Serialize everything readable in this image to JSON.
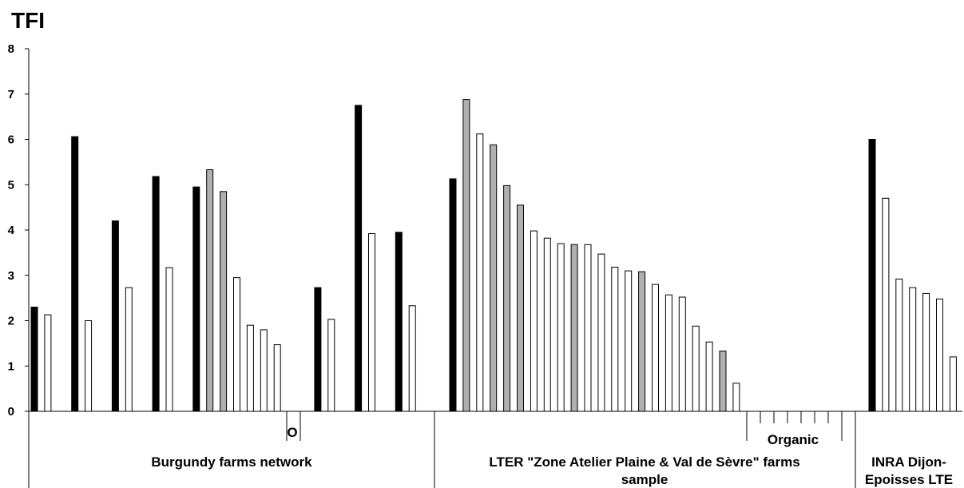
{
  "chart_data": {
    "type": "bar",
    "ylabel": "TFI",
    "ylim": [
      0,
      8
    ],
    "yticks": [
      0,
      1,
      2,
      3,
      4,
      5,
      6,
      7,
      8
    ],
    "grid": false,
    "legend": "none",
    "colors": {
      "black": "#000000",
      "gray": "#b0b0b0",
      "white": "#ffffff",
      "outline": "#000000"
    },
    "series": [
      {
        "values": [
          2.3,
          2.13,
          null,
          6.06,
          2.0,
          null,
          4.2,
          2.73,
          null,
          5.18,
          3.17,
          null,
          4.95,
          5.33,
          4.85,
          2.95,
          1.9,
          1.8,
          1.47,
          0,
          0,
          2.73,
          2.03,
          null,
          6.75,
          3.92,
          null,
          3.95,
          2.33,
          null,
          0
        ],
        "fills": [
          "black",
          "white",
          "none",
          "black",
          "white",
          "none",
          "black",
          "white",
          "none",
          "black",
          "white",
          "none",
          "black",
          "gray",
          "gray",
          "white",
          "white",
          "white",
          "white",
          "white",
          "white",
          "black",
          "white",
          "none",
          "black",
          "white",
          "none",
          "black",
          "white",
          "none",
          "white"
        ]
      },
      {
        "values": [
          5.13,
          6.88,
          6.12,
          5.88,
          4.98,
          4.55,
          3.98,
          3.82,
          3.7,
          3.68,
          3.68,
          3.47,
          3.18,
          3.1,
          3.08,
          2.8,
          2.57,
          2.52,
          1.88,
          1.53,
          1.33,
          0.62,
          0,
          0,
          0,
          0,
          0,
          0,
          0,
          0,
          0,
          0
        ],
        "fills": [
          "black",
          "gray",
          "white",
          "gray",
          "gray",
          "gray",
          "white",
          "white",
          "white",
          "gray",
          "white",
          "white",
          "white",
          "white",
          "gray",
          "white",
          "white",
          "white",
          "white",
          "white",
          "gray",
          "white",
          "white",
          "white",
          "white",
          "white",
          "white",
          "white",
          "white",
          "white",
          "white",
          "white"
        ]
      },
      {
        "values": [
          6.0,
          4.7,
          2.92,
          2.73,
          2.6,
          2.48,
          1.2
        ],
        "fills": [
          "black",
          "white",
          "white",
          "white",
          "white",
          "white",
          "white"
        ]
      }
    ],
    "annotations": {
      "sub_o": "O",
      "sub_organic": "Organic"
    },
    "groups": [
      {
        "label": "Burgundy farms network"
      },
      {
        "label_line1": "LTER \"Zone Atelier Plaine & Val de Sèvre\" farms",
        "label_line2": "sample"
      },
      {
        "label_line1": "INRA Dijon-",
        "label_line2": "Epoisses LTE"
      }
    ]
  }
}
